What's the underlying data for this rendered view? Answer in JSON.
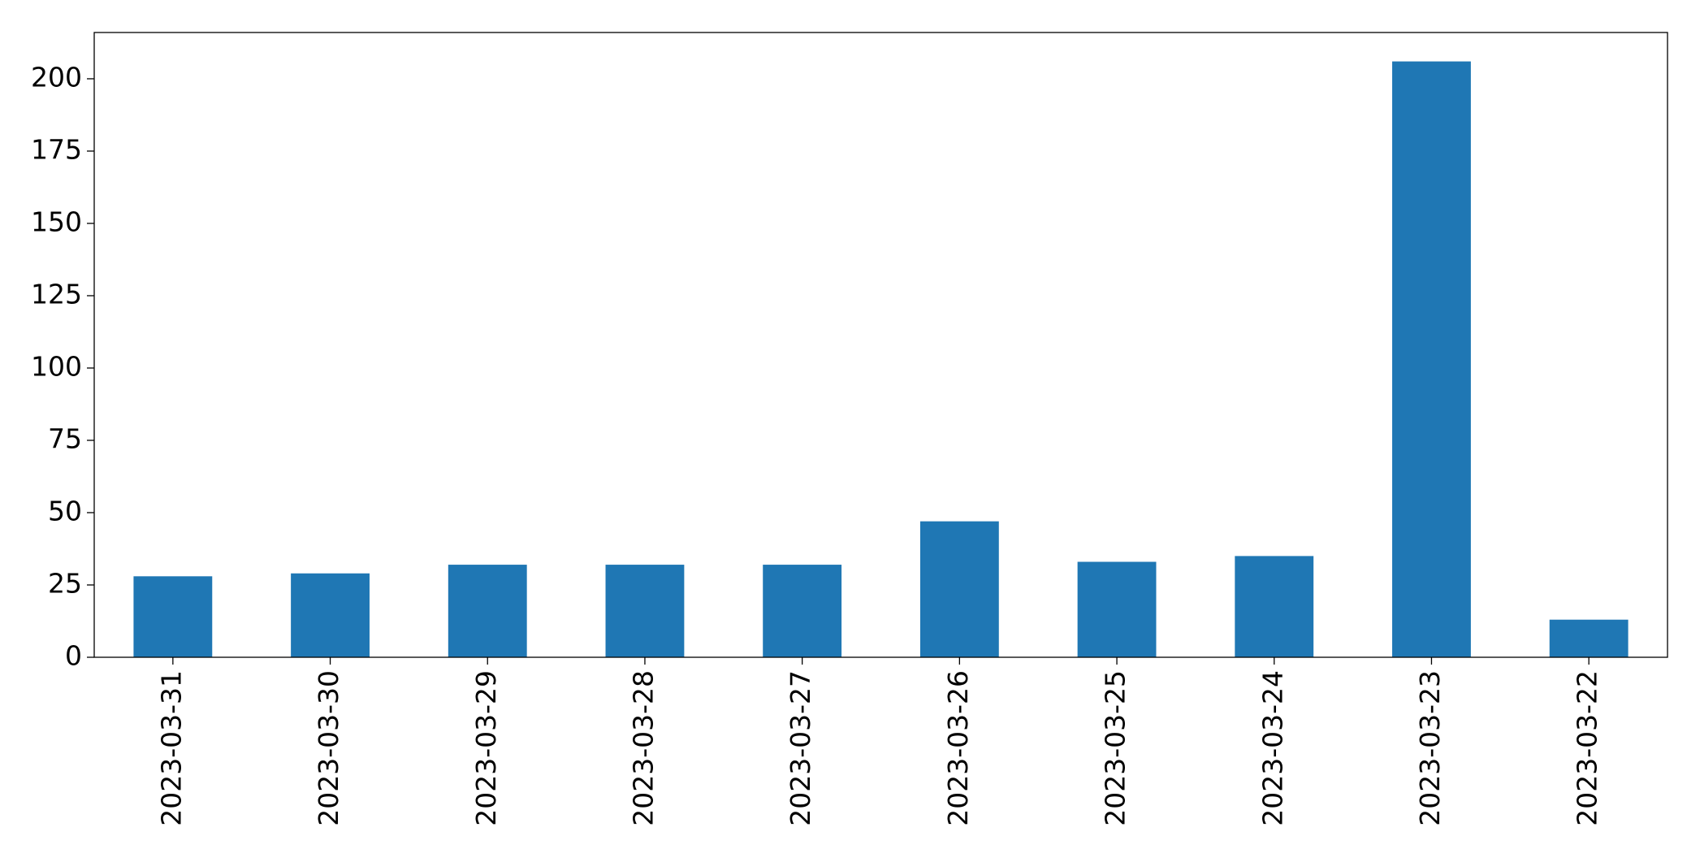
{
  "chart_data": {
    "type": "bar",
    "categories": [
      "2023-03-31",
      "2023-03-30",
      "2023-03-29",
      "2023-03-28",
      "2023-03-27",
      "2023-03-26",
      "2023-03-25",
      "2023-03-24",
      "2023-03-23",
      "2023-03-22"
    ],
    "values": [
      28,
      29,
      32,
      32,
      32,
      47,
      33,
      35,
      206,
      13
    ],
    "color": "#1f77b4",
    "ylim": [
      0,
      216
    ],
    "yticks": [
      0,
      25,
      50,
      75,
      100,
      125,
      150,
      175,
      200
    ],
    "grid": false
  }
}
